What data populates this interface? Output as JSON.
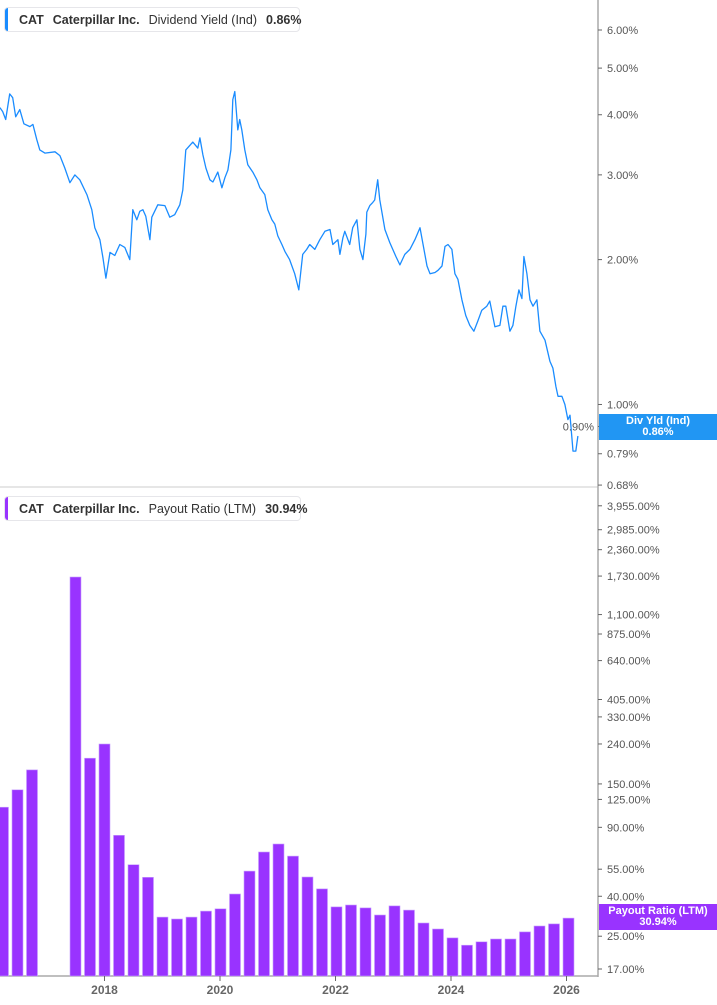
{
  "colors": {
    "yield_line": "#1a8cff",
    "payout_bar": "#9933ff",
    "yield_tag": "#2196f3",
    "payout_tag": "#9933ff"
  },
  "top_legend": {
    "ticker": "CAT",
    "company": "Caterpillar Inc.",
    "metric": "Dividend Yield (Ind)",
    "value": "0.86%"
  },
  "bottom_legend": {
    "ticker": "CAT",
    "company": "Caterpillar Inc.",
    "metric": "Payout Ratio (LTM)",
    "value": "30.94%"
  },
  "yield_tag": {
    "label": "Div Yld (Ind)",
    "value": "0.86%"
  },
  "payout_tag": {
    "label": "Payout Ratio (LTM)",
    "value": "30.94%"
  },
  "chart_data": [
    {
      "type": "line",
      "series": [
        {
          "name": "Dividend Yield (Ind)",
          "unit": "%",
          "points": [
            [
              "2016-03-10",
              4.14
            ],
            [
              "2016-03-28",
              4.06
            ],
            [
              "2016-04-16",
              3.91
            ],
            [
              "2016-05-11",
              4.42
            ],
            [
              "2016-05-30",
              4.34
            ],
            [
              "2016-06-18",
              3.96
            ],
            [
              "2016-07-14",
              4.1
            ],
            [
              "2016-08-09",
              3.83
            ],
            [
              "2016-09-16",
              3.78
            ],
            [
              "2016-10-05",
              3.82
            ],
            [
              "2016-10-30",
              3.55
            ],
            [
              "2016-11-18",
              3.38
            ],
            [
              "2016-12-20",
              3.33
            ],
            [
              "2017-02-22",
              3.35
            ],
            [
              "2017-03-25",
              3.29
            ],
            [
              "2017-04-25",
              3.1
            ],
            [
              "2017-05-27",
              2.89
            ],
            [
              "2017-06-28",
              3.0
            ],
            [
              "2017-07-29",
              2.93
            ],
            [
              "2017-09-12",
              2.73
            ],
            [
              "2017-10-13",
              2.54
            ],
            [
              "2017-11-01",
              2.33
            ],
            [
              "2017-12-03",
              2.2
            ],
            [
              "2017-12-22",
              2.02
            ],
            [
              "2018-01-10",
              1.83
            ],
            [
              "2018-02-05",
              2.07
            ],
            [
              "2018-03-07",
              2.04
            ],
            [
              "2018-04-08",
              2.15
            ],
            [
              "2018-05-09",
              2.12
            ],
            [
              "2018-06-10",
              2.0
            ],
            [
              "2018-06-29",
              2.54
            ],
            [
              "2018-07-24",
              2.42
            ],
            [
              "2018-08-12",
              2.52
            ],
            [
              "2018-09-01",
              2.54
            ],
            [
              "2018-09-19",
              2.46
            ],
            [
              "2018-10-15",
              2.2
            ],
            [
              "2018-10-27",
              2.45
            ],
            [
              "2018-12-04",
              2.6
            ],
            [
              "2019-01-18",
              2.59
            ],
            [
              "2019-02-18",
              2.45
            ],
            [
              "2019-03-21",
              2.48
            ],
            [
              "2019-04-22",
              2.6
            ],
            [
              "2019-05-11",
              2.79
            ],
            [
              "2019-05-30",
              3.38
            ],
            [
              "2019-07-13",
              3.51
            ],
            [
              "2019-08-14",
              3.41
            ],
            [
              "2019-08-27",
              3.58
            ],
            [
              "2019-09-15",
              3.3
            ],
            [
              "2019-10-04",
              3.1
            ],
            [
              "2019-10-29",
              2.93
            ],
            [
              "2019-11-17",
              2.9
            ],
            [
              "2019-12-18",
              3.04
            ],
            [
              "2020-01-13",
              2.82
            ],
            [
              "2020-02-01",
              2.96
            ],
            [
              "2020-02-20",
              3.07
            ],
            [
              "2020-03-10",
              3.38
            ],
            [
              "2020-03-22",
              4.3
            ],
            [
              "2020-04-04",
              4.47
            ],
            [
              "2020-04-23",
              3.72
            ],
            [
              "2020-05-05",
              3.91
            ],
            [
              "2020-05-18",
              3.72
            ],
            [
              "2020-06-06",
              3.38
            ],
            [
              "2020-06-25",
              3.15
            ],
            [
              "2020-07-27",
              3.04
            ],
            [
              "2020-08-22",
              2.93
            ],
            [
              "2020-09-10",
              2.82
            ],
            [
              "2020-10-11",
              2.73
            ],
            [
              "2020-10-30",
              2.54
            ],
            [
              "2020-11-25",
              2.42
            ],
            [
              "2020-12-13",
              2.37
            ],
            [
              "2021-01-01",
              2.24
            ],
            [
              "2021-01-27",
              2.15
            ],
            [
              "2021-02-15",
              2.08
            ],
            [
              "2021-03-17",
              2.0
            ],
            [
              "2021-04-18",
              1.87
            ],
            [
              "2021-05-14",
              1.73
            ],
            [
              "2021-06-08",
              2.05
            ],
            [
              "2021-07-03",
              2.1
            ],
            [
              "2021-07-22",
              2.15
            ],
            [
              "2021-08-23",
              2.1
            ],
            [
              "2021-09-24",
              2.2
            ],
            [
              "2021-10-26",
              2.29
            ],
            [
              "2021-11-27",
              2.31
            ],
            [
              "2021-12-15",
              2.15
            ],
            [
              "2022-01-16",
              2.2
            ],
            [
              "2022-01-29",
              2.05
            ],
            [
              "2022-02-17",
              2.22
            ],
            [
              "2022-03-01",
              2.29
            ],
            [
              "2022-04-01",
              2.15
            ],
            [
              "2022-04-20",
              2.33
            ],
            [
              "2022-05-16",
              2.42
            ],
            [
              "2022-06-04",
              2.1
            ],
            [
              "2022-06-23",
              2.0
            ],
            [
              "2022-07-12",
              2.26
            ],
            [
              "2022-07-18",
              2.51
            ],
            [
              "2022-08-06",
              2.59
            ],
            [
              "2022-08-25",
              2.63
            ],
            [
              "2022-09-06",
              2.66
            ],
            [
              "2022-09-25",
              2.93
            ],
            [
              "2022-10-08",
              2.66
            ],
            [
              "2022-11-09",
              2.31
            ],
            [
              "2022-12-10",
              2.17
            ],
            [
              "2023-01-18",
              2.03
            ],
            [
              "2023-02-12",
              1.95
            ],
            [
              "2023-03-15",
              2.05
            ],
            [
              "2023-04-16",
              2.1
            ],
            [
              "2023-05-18",
              2.2
            ],
            [
              "2023-06-19",
              2.33
            ],
            [
              "2023-08-02",
              1.94
            ],
            [
              "2023-08-21",
              1.87
            ],
            [
              "2023-09-22",
              1.88
            ],
            [
              "2023-10-11",
              1.9
            ],
            [
              "2023-11-05",
              1.94
            ],
            [
              "2023-11-24",
              2.13
            ],
            [
              "2023-12-13",
              2.15
            ],
            [
              "2024-01-07",
              2.1
            ],
            [
              "2024-01-26",
              1.87
            ],
            [
              "2024-02-14",
              1.82
            ],
            [
              "2024-03-10",
              1.65
            ],
            [
              "2024-04-04",
              1.53
            ],
            [
              "2024-04-29",
              1.46
            ],
            [
              "2024-05-25",
              1.42
            ],
            [
              "2024-06-19",
              1.49
            ],
            [
              "2024-07-14",
              1.57
            ],
            [
              "2024-08-15",
              1.6
            ],
            [
              "2024-09-03",
              1.64
            ],
            [
              "2024-10-05",
              1.45
            ],
            [
              "2024-11-06",
              1.46
            ],
            [
              "2024-11-25",
              1.6
            ],
            [
              "2024-12-13",
              1.6
            ],
            [
              "2025-01-08",
              1.42
            ],
            [
              "2025-01-27",
              1.46
            ],
            [
              "2025-02-15",
              1.6
            ],
            [
              "2025-03-06",
              1.73
            ],
            [
              "2025-03-25",
              1.66
            ],
            [
              "2025-04-07",
              2.03
            ],
            [
              "2025-04-26",
              1.87
            ],
            [
              "2025-05-15",
              1.65
            ],
            [
              "2025-06-03",
              1.6
            ],
            [
              "2025-06-28",
              1.65
            ],
            [
              "2025-07-17",
              1.42
            ],
            [
              "2025-08-18",
              1.36
            ],
            [
              "2025-09-18",
              1.23
            ],
            [
              "2025-10-07",
              1.19
            ],
            [
              "2025-10-26",
              1.09
            ],
            [
              "2025-11-08",
              1.04
            ],
            [
              "2025-12-03",
              1.04
            ],
            [
              "2025-12-22",
              1.0
            ],
            [
              "2026-01-10",
              0.93
            ],
            [
              "2026-01-23",
              0.95
            ],
            [
              "2026-02-11",
              0.8
            ],
            [
              "2026-03-01",
              0.8
            ],
            [
              "2026-03-14",
              0.86
            ]
          ]
        }
      ],
      "y_scale": "log",
      "ylim": [
        0.68,
        6.6
      ],
      "y_ticks": [
        "6.00%",
        "5.00%",
        "4.00%",
        "3.00%",
        "2.00%",
        "1.00%",
        "0.90%",
        "0.79%",
        "0.68%"
      ],
      "y_tick_values": [
        6,
        5,
        4,
        3,
        2,
        1,
        0.9,
        0.79,
        0.68
      ],
      "grid": false
    },
    {
      "type": "bar",
      "series": [
        {
          "name": "Payout Ratio (LTM)",
          "unit": "%",
          "categories": [
            "2016 Q1",
            "2016 Q2",
            "2016 Q3",
            "2016 Q4",
            "2017 Q1",
            "2017 Q2",
            "2017 Q3",
            "2017 Q4",
            "2018 Q1",
            "2018 Q2",
            "2018 Q3",
            "2018 Q4",
            "2019 Q1",
            "2019 Q2",
            "2019 Q3",
            "2019 Q4",
            "2020 Q1",
            "2020 Q2",
            "2020 Q3",
            "2020 Q4",
            "2021 Q1",
            "2021 Q2",
            "2021 Q3",
            "2021 Q4",
            "2022 Q1",
            "2022 Q2",
            "2022 Q3",
            "2022 Q4",
            "2023 Q1",
            "2023 Q2",
            "2023 Q3",
            "2023 Q4",
            "2024 Q1",
            "2024 Q2",
            "2024 Q3",
            "2024 Q4",
            "2025 Q1",
            "2025 Q2",
            "2025 Q3",
            "2025 Q4"
          ],
          "values": [
            114,
            140,
            177,
            null,
            null,
            1712,
            203,
            240,
            82,
            58,
            50,
            31.3,
            30.6,
            31.3,
            33.6,
            34.5,
            41.1,
            53.8,
            67.3,
            74,
            64.2,
            50.2,
            43.6,
            35.3,
            36.1,
            34.9,
            32.1,
            35.7,
            34.0,
            29.2,
            27.2,
            24.5,
            22.5,
            23.4,
            24.2,
            24.2,
            26.3,
            28.2,
            28.9,
            30.94
          ]
        }
      ],
      "y_scale": "log",
      "ylim": [
        15.5,
        4300
      ],
      "y_ticks": [
        "3,955.00%",
        "2,985.00%",
        "2,360.00%",
        "1,730.00%",
        "1,100.00%",
        "875.00%",
        "640.00%",
        "405.00%",
        "330.00%",
        "240.00%",
        "150.00%",
        "125.00%",
        "90.00%",
        "55.00%",
        "40.00%",
        "25.00%",
        "17.00%"
      ],
      "y_tick_values": [
        3955,
        2985,
        2360,
        1730,
        1100,
        875,
        640,
        405,
        330,
        240,
        150,
        125,
        90,
        55,
        40,
        25,
        17
      ],
      "grid": false
    }
  ],
  "x_axis": {
    "ticks": [
      "2018",
      "2020",
      "2022",
      "2024",
      "2026"
    ]
  }
}
